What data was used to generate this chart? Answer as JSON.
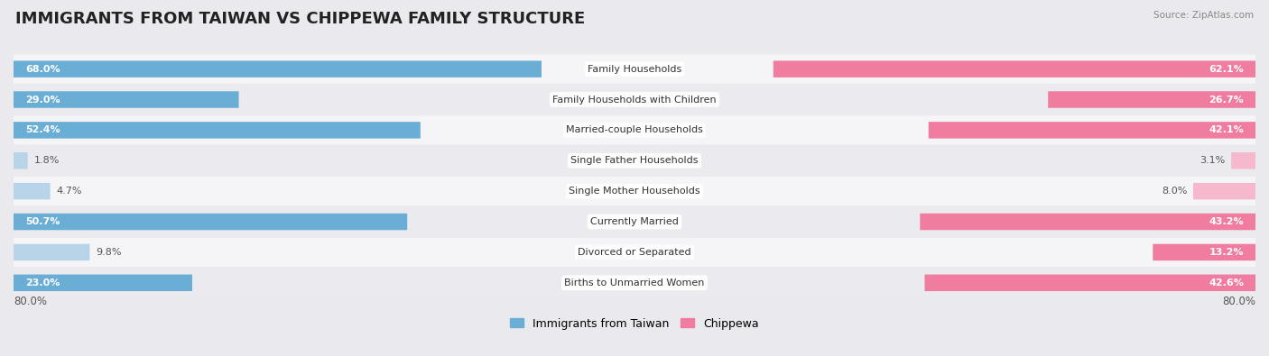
{
  "title": "IMMIGRANTS FROM TAIWAN VS CHIPPEWA FAMILY STRUCTURE",
  "source": "Source: ZipAtlas.com",
  "categories": [
    "Family Households",
    "Family Households with Children",
    "Married-couple Households",
    "Single Father Households",
    "Single Mother Households",
    "Currently Married",
    "Divorced or Separated",
    "Births to Unmarried Women"
  ],
  "taiwan_values": [
    68.0,
    29.0,
    52.4,
    1.8,
    4.7,
    50.7,
    9.8,
    23.0
  ],
  "chippewa_values": [
    62.1,
    26.7,
    42.1,
    3.1,
    8.0,
    43.2,
    13.2,
    42.6
  ],
  "max_val": 80.0,
  "taiwan_color_dark": "#6aaed6",
  "taiwan_color_light": "#b8d4e8",
  "chippewa_color_dark": "#f07ca0",
  "chippewa_color_light": "#f5b8cc",
  "bg_color": "#eaeaee",
  "row_bg_even": "#f5f5f7",
  "row_bg_odd": "#ebebef",
  "legend_taiwan": "Immigrants from Taiwan",
  "legend_chippewa": "Chippewa",
  "axis_label_left": "80.0%",
  "axis_label_right": "80.0%",
  "threshold_dark": 10.0,
  "title_fontsize": 13,
  "bar_fontsize": 8,
  "label_fontsize": 8
}
